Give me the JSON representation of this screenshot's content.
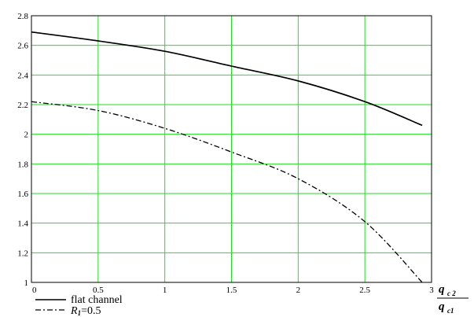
{
  "chart_data": {
    "type": "line",
    "xlim": [
      0,
      3
    ],
    "ylim": [
      1,
      2.8
    ],
    "grid": true,
    "grid_color": "#22dd22",
    "x_ticks": [
      "0",
      "0.5",
      "1",
      "1.5",
      "2",
      "2.5",
      "3"
    ],
    "y_ticks": [
      "1",
      "1.2",
      "1.4",
      "1.6",
      "1.8",
      "2",
      "2.2",
      "2.4",
      "2.6",
      "2.8"
    ],
    "xlabel": {
      "numerator": "q",
      "numerator_sub": "c 2",
      "denominator": "q",
      "denominator_sub": "c1"
    },
    "series": [
      {
        "name": "flat channel",
        "style": "solid",
        "color": "#000000",
        "x": [
          0,
          0.5,
          1,
          1.5,
          2,
          2.5,
          2.93
        ],
        "y": [
          2.69,
          2.63,
          2.56,
          2.46,
          2.36,
          2.22,
          2.06
        ]
      },
      {
        "name": "R1=0.5",
        "style": "dash-dot",
        "color": "#000000",
        "x": [
          0,
          0.5,
          1,
          1.5,
          2,
          2.5,
          2.93
        ],
        "y": [
          2.22,
          2.16,
          2.04,
          1.88,
          1.7,
          1.41,
          1.0
        ]
      }
    ],
    "legend": {
      "placement": "bottom-left",
      "entries": [
        {
          "label": "flat channel"
        },
        {
          "label_italic": "R",
          "label_sub": "1",
          "label_rest": "=0.5"
        }
      ]
    }
  }
}
